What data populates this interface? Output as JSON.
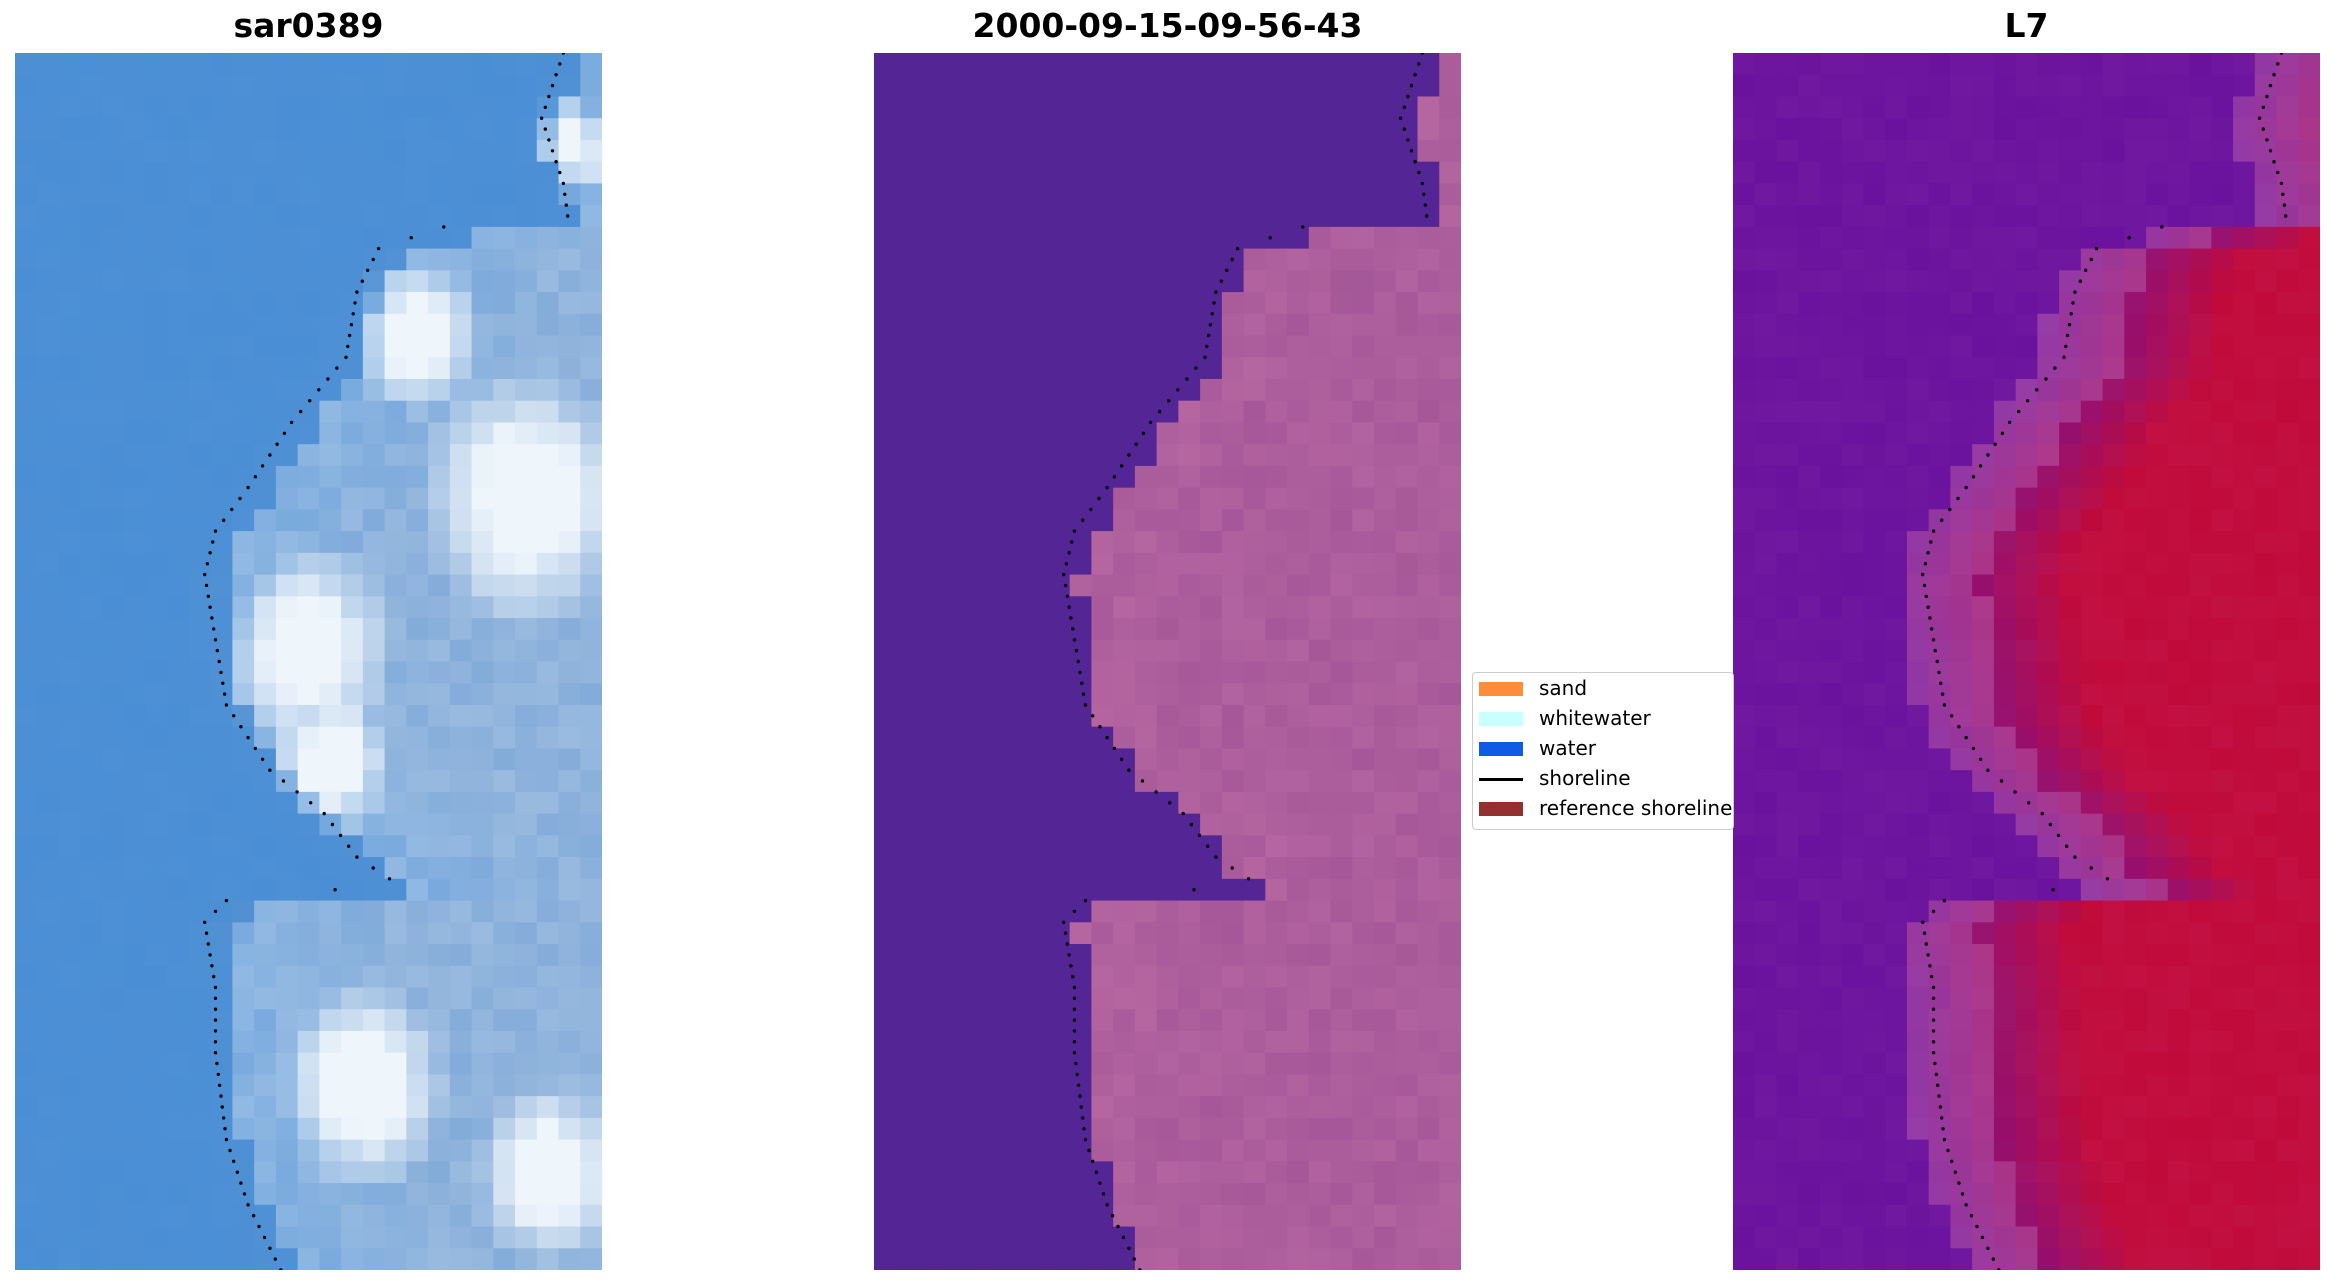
{
  "panels": [
    {
      "title": "sar0389",
      "palette": "rgb"
    },
    {
      "title": "2000-09-15-09-56-43",
      "palette": "classified"
    },
    {
      "title": "L7",
      "palette": "ndwi"
    }
  ],
  "legend": {
    "items": [
      {
        "label": "sand",
        "kind": "patch",
        "color": "#ff8c3b"
      },
      {
        "label": "whitewater",
        "kind": "patch",
        "color": "#c8ffff"
      },
      {
        "label": "water",
        "kind": "patch",
        "color": "#0f5be6"
      },
      {
        "label": "shoreline",
        "kind": "line",
        "color": "#000000"
      },
      {
        "label": "reference shoreline",
        "kind": "patch",
        "color": "#943030"
      }
    ]
  },
  "colors": {
    "water_rgb": "#4a8fd6",
    "whitewater_rgb": "#eef5fb",
    "water_class": "#542595",
    "land_class": "#a85a9a",
    "ndwi_low": "#6a129e",
    "ndwi_high": "#c00a3a",
    "shoreline_dots": "#000000"
  }
}
